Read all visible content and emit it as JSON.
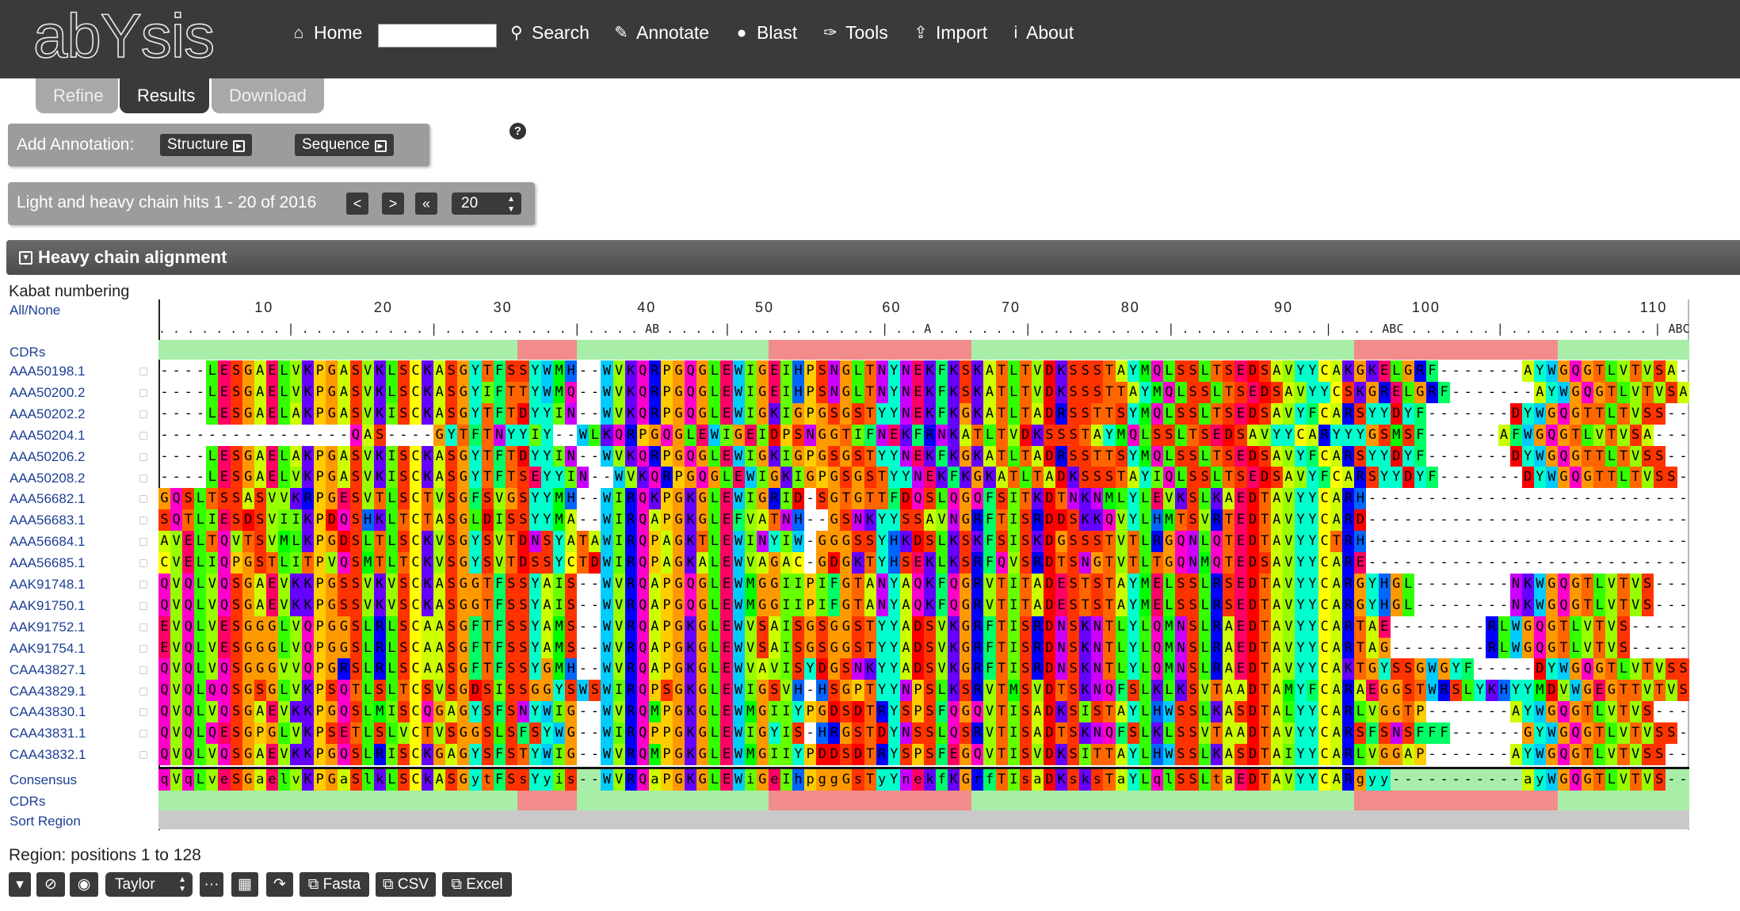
{
  "brand": "abYsis",
  "nav": {
    "home": "Home",
    "search_value": "",
    "search": "Search",
    "annotate": "Annotate",
    "blast": "Blast",
    "tools": "Tools",
    "import": "Import",
    "about": "About"
  },
  "tabs": [
    "Refine",
    "Results",
    "Download"
  ],
  "annotation": {
    "label": "Add Annotation:",
    "structure": "Structure",
    "sequence": "Sequence"
  },
  "hits": {
    "label": "Light and heavy chain hits 1 - 20 of 2016",
    "prev": "<",
    "next": ">",
    "first": "«",
    "page_size": "20"
  },
  "section": {
    "title": "Heavy chain alignment"
  },
  "left_labels": {
    "kabat": "Kabat numbering",
    "all_none": "All/None",
    "cdrs_top": "CDRs",
    "consensus": "Consensus",
    "cdrs_bottom": "CDRs",
    "sort_region": "Sort Region"
  },
  "ruler": {
    "numbers": [
      "10",
      "20",
      "30",
      "40",
      "50",
      "60",
      "70",
      "80",
      "90",
      "100",
      "110"
    ],
    "ticks": ". . . . . . . . . | . . . . . . . . . | . . . . . . . . . | . . . . AB . . . . | . . . . . . . . . . | . . A . . . . . . | . . . . . . . . . | . . . . . . . . . . | . . . ABC . . . . . . | . . . . . . . . . . | ABCDEFGHI . . . . . . . . . | . . ."
  },
  "sequences": [
    {
      "id": "AAA50198.1",
      "seq": "----LESGAELVKPGASVKLSCKASGYTFSSYWMH--WVKQRPGQGLEWIGEIHPSNGLTNYNEKFKSKATLTVDKSSSTAYMQLSSLTSEDSAVYYCAKGKELGRF-------AYWGQGTLVTVSA"
    },
    {
      "id": "AAA50200.2",
      "seq": "----LESGAELVKPGASVKLSCKASGYIFTTYWMQ--WVKQRPGQGLEWIGEIHPSNGLTNYNEKFKSKATLTVDKSSSTTAYMQLSSLTSEDSAVYYCSKGRELGRF-------AYWGQGTLVTVSA"
    },
    {
      "id": "AAA50202.2",
      "seq": "----LESGAELAKPGASVKISCKASGYTFTDYYIN--WVKQRPGQGLEWIGKIGPGSGSTYYNEKFKGKATLTADRSSTTSYMQLSSLTSEDSAVYFCARSYYDYF-------DYWGQGTTLTVSS"
    },
    {
      "id": "AAA50204.1",
      "seq": "----------------QAS----GYTFTNYYIY--WLKQRPGQGLEWIGEIDPSNGGTIFNEKFRNKATLTVDKSSSTAYMQLSSLTSEDSAVYYCARYYYGSMSF------AFWGQGTLVTVSA"
    },
    {
      "id": "AAA50206.2",
      "seq": "----LESGAELAKPGASVKISCKASGYTFTDYYIN--WVKQRPGQGLEWIGKIGPGSGSTYYNEKFKGKATLTADRSSTTSYMQLSSLTSEDSAVYFCARSYYDYF-------DYWGQGTTLTVSS"
    },
    {
      "id": "AAA50208.2",
      "seq": "----LESGAELVKPGASVKISCKASGYTFTSEYYIN--WVKQRPGQGLEWIGKIGPGSGSTYYNEKFKGKATLTADKSSSTAYIQLSSLTSEDSAVYFCARSYYDYF-------DYWGQGTTLTVSS"
    },
    {
      "id": "AAA56682.1",
      "seq": "GQSLTSSASVVKRPGESVTLSCTVSGFSVGSYYMH--WIRQKPGKGLEWIGRID-SGTGTTFDQSLQGQFSITKDTNKNMLYLEVKSLKAEDTAVYYCARH------------------------"
    },
    {
      "id": "AAA56683.1",
      "seq": "SQTLIESDSVIIKPDQSHKLTCTASGLDISSYYMA--WIRQAPGKGLEFVATNH--GSNKYYSSAVNGRFTISRDDSKKQVYLHMTSVRTEDTAVYYCARD------------------------"
    },
    {
      "id": "AAA56684.1",
      "seq": "AVELTQVTSVMLKPGDSLTLSCKVSGYSVTDNSYATAWIRQPAGKTLEWINYIW-GGGSSYHKDSLKSKFSISKDGSSSTVTLRGQNLQTEDTAVYYCTRH------------------------"
    },
    {
      "id": "AAA56685.1",
      "seq": "CVELIQPGSTLITPVQSMTLTCKVSGYSVTDSSYCTDWIRQPAGKALEWVAGAC-GDGKTYHSEKLKSRFQVSRDTSNGTVTLTGQNMQTEDSAVYYCARE------------------------"
    },
    {
      "id": "AAK91748.1",
      "seq": "QVQLVQSGAEVKKPGSSVKVSCKASGGTFSSYAIS--WVRQAPGQGLEWMGGIIPIFGTANYAQKFQGRVTITADESTSTAYMELSSLRSEDTAVYYCARGYHGL--------NKWGQGTLVTVS-"
    },
    {
      "id": "AAK91750.1",
      "seq": "QVQLVQSGAEVKKPGSSVKVSCKASGGTFSSYAIS--WVRQAPGQGLEWMGGIIPIFGTANYAQKFQGRVTITADESTSTAYMELSSLRSEDTAVYYCARGYHGL--------NKWGQGTLVTVS-"
    },
    {
      "id": "AAK91752.1",
      "seq": "EVQLVESGGGLVQPGGSLRLSCAASGFTFSSYAMS--WVRQAPGKGLEWVSAISGSGGSTYYADSVKGRFTISRDNSKNTLYLQMNSLRAEDTAVYYCARTAE--------RLWGQGTLVTVS-"
    },
    {
      "id": "AAK91754.1",
      "seq": "EVQLVESGGGLVQPGGSLRLSCAASGFTFSSYAMS--WVRQAPGKGLEWVSAISGSGGSTYYADSVKGRFTISRDNSKNTLYLQMNSLRAEDTAVYYCARTAG--------RLWGQGTLVTVS-"
    },
    {
      "id": "CAA43827.1",
      "seq": "QVQLVQSGGGVVQPGRSLRLSCAASGFTFSSYGMH--WVRQAPGKGLEWVAVISYDGSNKYYADSVKGRFTISRDNSKNTLYLQMNSLRAEDTAVYYCAKTGYSSGWGYF-----DYWGQGTLVTVSS"
    },
    {
      "id": "CAA43829.1",
      "seq": "QVQLQQSGSGLVKPSQTLSLTCSVSGDSISSGGYSWSWIRQPSGKGLEWIGSVH-HSGPTYYNPSLKSRVTMSVDTSKNQFSLKLKSVTAADTAMYFCARAEGGSTWRSLYKHYYMDVWGEGTTVTVSF"
    },
    {
      "id": "CAA43830.1",
      "seq": "QVQLVQSGAEVKKPGQSLMISCQGAGYSFSNYWIG--WVRQMPGKGLEWMGIIYPGDSDTRYSPSFQGQVTISADKSISTAYLHWSSLKASDTALYYCARLVGGTP-------AYWGQGTLVTVS-"
    },
    {
      "id": "CAA43831.1",
      "seq": "QVQLQESGPGLVKPSETLSLVCTVSGGSLSFSYWG--WIRQPPGKGLEWIGYIS-HRGSTDYNSSLQSRVTISADTSKNQFSLKLSSVTAADTAVYYCARSFSNSFFF------GYWGQGTLVTVSS"
    },
    {
      "id": "CAA43832.1",
      "seq": "QVQLVQSGAEVKKPGQSLRISCKGAGYSFSTYWIG--WVRQMPGKGLEWMGIIYPDDSDTRYSPSFEGQVTISVDKSITTAYLHWSSLKASDTAIYYCARLVGGAP-------AYWGQGTLVTVSS"
    }
  ],
  "consensus": "qVqLveSGaelvKPGaSlkLSCkASGytFSsYyis--WVRQaPGKGLEWiGeIhpggGsTyYnekfKGrfTIsaDKsksTaYLqlSSLtaEDTAVYYCARgyy-----------ayWGQGTLVTVS-",
  "region": {
    "text": "Region: positions 1 to 128"
  },
  "toolbar": {
    "color_scheme": "Taylor",
    "fasta": "Fasta",
    "csv": "CSV",
    "excel": "Excel"
  },
  "colors": {
    "topbar": "#3a3a3a",
    "cdr_red": "#f28c8c",
    "cdr_green": "#a8eea8",
    "link": "#1c3f94"
  }
}
